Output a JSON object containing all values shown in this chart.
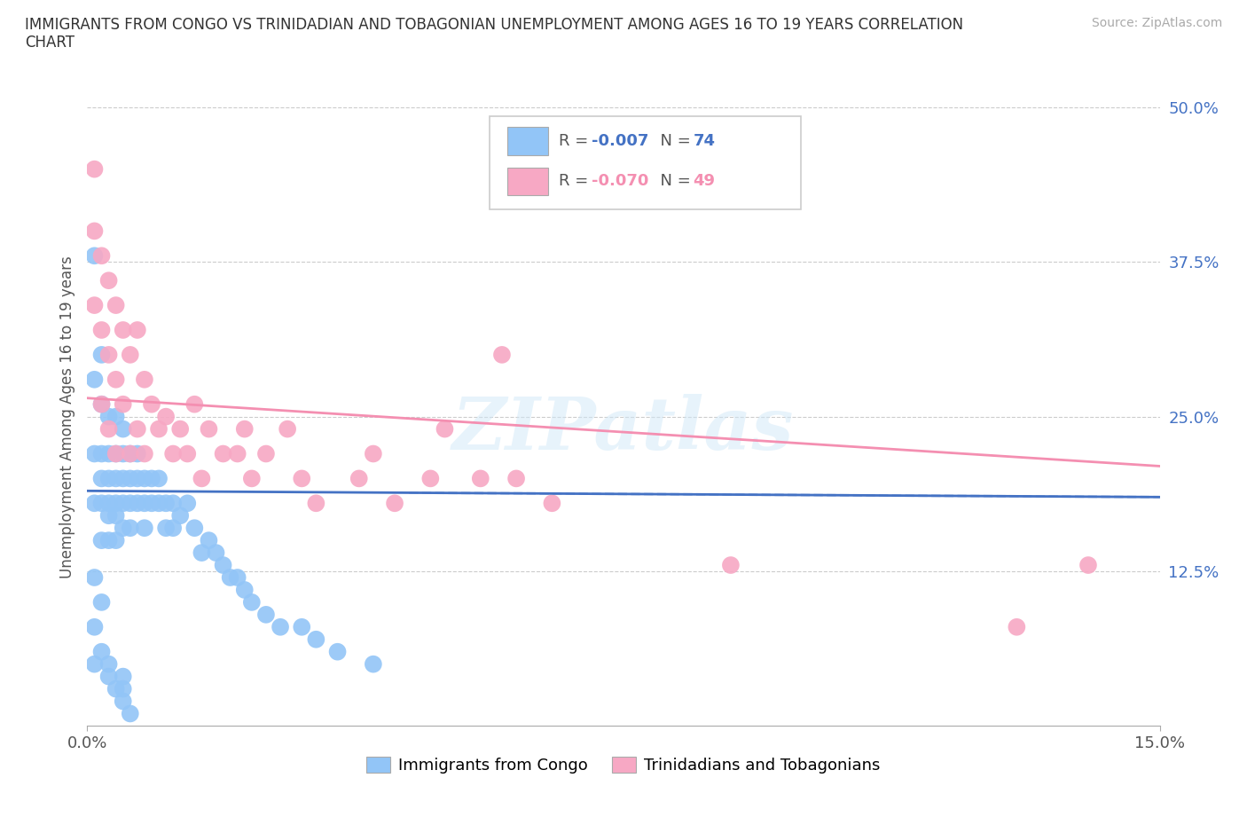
{
  "title": "IMMIGRANTS FROM CONGO VS TRINIDADIAN AND TOBAGONIAN UNEMPLOYMENT AMONG AGES 16 TO 19 YEARS CORRELATION\nCHART",
  "source": "Source: ZipAtlas.com",
  "ylabel": "Unemployment Among Ages 16 to 19 years",
  "xlim": [
    0.0,
    0.15
  ],
  "ylim": [
    0.0,
    0.5
  ],
  "ytick_positions": [
    0.0,
    0.125,
    0.25,
    0.375,
    0.5
  ],
  "yticklabels_right": [
    "",
    "12.5%",
    "25.0%",
    "37.5%",
    "50.0%"
  ],
  "grid_color": "#cccccc",
  "background_color": "#ffffff",
  "watermark": "ZIPatlas",
  "color_congo": "#92c5f7",
  "color_trinidadian": "#f7a8c4",
  "trendline_color_congo": "#4472c4",
  "trendline_color_trinidadian": "#f48fb1",
  "r_congo": "-0.007",
  "n_congo": "74",
  "r_trin": "-0.070",
  "n_trin": "49",
  "scatter_congo_x": [
    0.001,
    0.001,
    0.001,
    0.001,
    0.001,
    0.002,
    0.002,
    0.002,
    0.002,
    0.002,
    0.002,
    0.002,
    0.003,
    0.003,
    0.003,
    0.003,
    0.003,
    0.003,
    0.004,
    0.004,
    0.004,
    0.004,
    0.004,
    0.004,
    0.005,
    0.005,
    0.005,
    0.005,
    0.005,
    0.006,
    0.006,
    0.006,
    0.006,
    0.007,
    0.007,
    0.007,
    0.008,
    0.008,
    0.008,
    0.009,
    0.009,
    0.01,
    0.01,
    0.011,
    0.011,
    0.012,
    0.012,
    0.013,
    0.014,
    0.015,
    0.016,
    0.017,
    0.018,
    0.019,
    0.02,
    0.021,
    0.022,
    0.023,
    0.025,
    0.027,
    0.03,
    0.032,
    0.035,
    0.04,
    0.001,
    0.001,
    0.002,
    0.003,
    0.003,
    0.004,
    0.005,
    0.005,
    0.005,
    0.006
  ],
  "scatter_congo_y": [
    0.38,
    0.28,
    0.22,
    0.18,
    0.12,
    0.3,
    0.26,
    0.22,
    0.2,
    0.18,
    0.15,
    0.1,
    0.25,
    0.22,
    0.2,
    0.18,
    0.17,
    0.15,
    0.25,
    0.22,
    0.2,
    0.18,
    0.17,
    0.15,
    0.24,
    0.22,
    0.2,
    0.18,
    0.16,
    0.22,
    0.2,
    0.18,
    0.16,
    0.22,
    0.2,
    0.18,
    0.2,
    0.18,
    0.16,
    0.2,
    0.18,
    0.2,
    0.18,
    0.18,
    0.16,
    0.18,
    0.16,
    0.17,
    0.18,
    0.16,
    0.14,
    0.15,
    0.14,
    0.13,
    0.12,
    0.12,
    0.11,
    0.1,
    0.09,
    0.08,
    0.08,
    0.07,
    0.06,
    0.05,
    0.08,
    0.05,
    0.06,
    0.05,
    0.04,
    0.03,
    0.04,
    0.03,
    0.02,
    0.01
  ],
  "scatter_trin_x": [
    0.001,
    0.001,
    0.001,
    0.002,
    0.002,
    0.002,
    0.003,
    0.003,
    0.003,
    0.004,
    0.004,
    0.004,
    0.005,
    0.005,
    0.006,
    0.006,
    0.007,
    0.007,
    0.008,
    0.008,
    0.009,
    0.01,
    0.011,
    0.012,
    0.013,
    0.014,
    0.015,
    0.016,
    0.017,
    0.019,
    0.021,
    0.022,
    0.023,
    0.025,
    0.028,
    0.03,
    0.032,
    0.038,
    0.04,
    0.043,
    0.048,
    0.05,
    0.055,
    0.058,
    0.06,
    0.065,
    0.09,
    0.13,
    0.14
  ],
  "scatter_trin_y": [
    0.45,
    0.4,
    0.34,
    0.38,
    0.32,
    0.26,
    0.36,
    0.3,
    0.24,
    0.34,
    0.28,
    0.22,
    0.32,
    0.26,
    0.3,
    0.22,
    0.32,
    0.24,
    0.28,
    0.22,
    0.26,
    0.24,
    0.25,
    0.22,
    0.24,
    0.22,
    0.26,
    0.2,
    0.24,
    0.22,
    0.22,
    0.24,
    0.2,
    0.22,
    0.24,
    0.2,
    0.18,
    0.2,
    0.22,
    0.18,
    0.2,
    0.24,
    0.2,
    0.3,
    0.2,
    0.18,
    0.13,
    0.08,
    0.13
  ]
}
